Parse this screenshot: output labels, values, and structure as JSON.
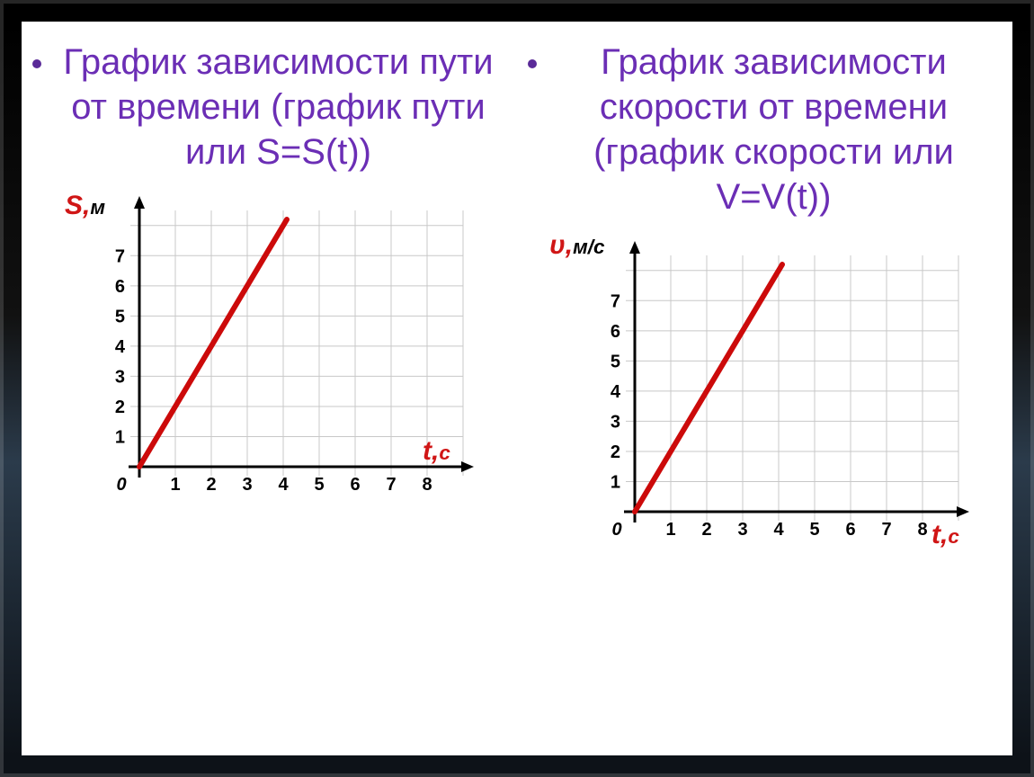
{
  "colors": {
    "title": "#6b2eb5",
    "bullet": "#5a2a98",
    "line": "#cc0a0a",
    "axis": "#000000",
    "grid": "#c8c8c8",
    "tick_text": "#000000",
    "y_label": "#d01616",
    "y_label_unit": "#000000",
    "x_label": "#d01616",
    "chart_bg": "#ffffff"
  },
  "title_fontsize": 40,
  "tick_fontsize": 20,
  "axis_label_fontsize": 30,
  "left": {
    "title": "График зависимости пути от времени (график пути или S=S(t))",
    "chart": {
      "type": "line",
      "y_label_main": "S,",
      "y_label_unit": "м",
      "x_label_main": "t,",
      "x_label_unit": "с",
      "x_ticks": [
        1,
        2,
        3,
        4,
        5,
        6,
        7,
        8
      ],
      "y_ticks": [
        1,
        2,
        3,
        4,
        5,
        6,
        7
      ],
      "origin_label": "0",
      "xlim": [
        0,
        9
      ],
      "ylim": [
        0,
        8.5
      ],
      "line_points": [
        [
          0,
          0
        ],
        [
          4.1,
          8.2
        ]
      ],
      "line_width": 6,
      "axis_width": 3
    }
  },
  "right": {
    "title": "График зависимости скорости от времени (график скорости или V=V(t))",
    "chart": {
      "type": "line",
      "y_label_main": "υ,",
      "y_label_unit": "м/с",
      "x_label_main": "t,",
      "x_label_unit": "с",
      "x_ticks": [
        1,
        2,
        3,
        4,
        5,
        6,
        7,
        8
      ],
      "y_ticks": [
        1,
        2,
        3,
        4,
        5,
        6,
        7
      ],
      "origin_label": "0",
      "xlim": [
        0,
        9
      ],
      "ylim": [
        0,
        8.5
      ],
      "line_points": [
        [
          0,
          0
        ],
        [
          4.1,
          8.2
        ]
      ],
      "line_width": 6,
      "axis_width": 3
    }
  }
}
